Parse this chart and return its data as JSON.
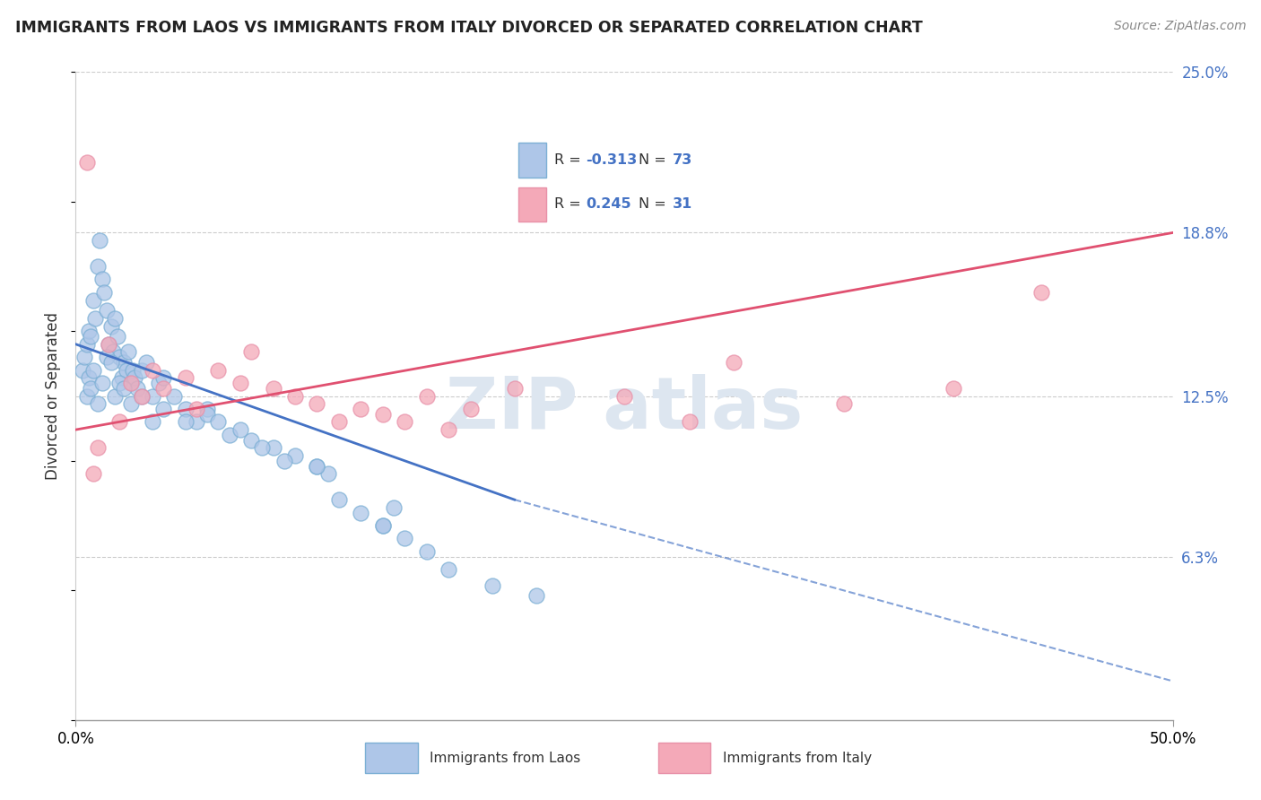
{
  "title": "IMMIGRANTS FROM LAOS VS IMMIGRANTS FROM ITALY DIVORCED OR SEPARATED CORRELATION CHART",
  "source": "Source: ZipAtlas.com",
  "ylabel": "Divorced or Separated",
  "x_min": 0.0,
  "x_max": 50.0,
  "y_min": 0.0,
  "y_max": 25.0,
  "y_ticks_right": [
    6.3,
    12.5,
    18.8,
    25.0
  ],
  "y_tick_labels_right": [
    "6.3%",
    "12.5%",
    "18.8%",
    "25.0%"
  ],
  "grid_color": "#cccccc",
  "background_color": "#ffffff",
  "laos_R": -0.313,
  "laos_N": 73,
  "italy_R": 0.245,
  "italy_N": 31,
  "laos_x": [
    0.3,
    0.4,
    0.5,
    0.6,
    0.7,
    0.8,
    0.9,
    1.0,
    1.1,
    1.2,
    1.3,
    1.4,
    1.5,
    1.6,
    1.7,
    1.8,
    1.9,
    2.0,
    2.1,
    2.2,
    2.3,
    2.4,
    2.5,
    2.6,
    2.7,
    2.8,
    3.0,
    3.2,
    3.5,
    3.8,
    4.0,
    4.5,
    5.0,
    5.5,
    6.0,
    7.0,
    8.0,
    9.0,
    10.0,
    11.0,
    12.0,
    13.0,
    14.0,
    15.0,
    16.0,
    0.5,
    0.6,
    0.7,
    0.8,
    1.0,
    1.2,
    1.4,
    1.6,
    1.8,
    2.0,
    2.2,
    2.5,
    3.0,
    3.5,
    4.0,
    5.0,
    6.0,
    7.5,
    9.5,
    11.5,
    14.0,
    17.0,
    19.0,
    21.0,
    6.5,
    8.5,
    11.0,
    14.5
  ],
  "laos_y": [
    13.5,
    14.0,
    14.5,
    15.0,
    14.8,
    16.2,
    15.5,
    17.5,
    18.5,
    17.0,
    16.5,
    15.8,
    14.5,
    15.2,
    14.2,
    15.5,
    14.8,
    14.0,
    13.2,
    13.8,
    13.5,
    14.2,
    13.0,
    13.5,
    13.2,
    12.8,
    13.5,
    13.8,
    12.5,
    13.0,
    13.2,
    12.5,
    12.0,
    11.5,
    12.0,
    11.0,
    10.8,
    10.5,
    10.2,
    9.8,
    8.5,
    8.0,
    7.5,
    7.0,
    6.5,
    12.5,
    13.2,
    12.8,
    13.5,
    12.2,
    13.0,
    14.0,
    13.8,
    12.5,
    13.0,
    12.8,
    12.2,
    12.5,
    11.5,
    12.0,
    11.5,
    11.8,
    11.2,
    10.0,
    9.5,
    7.5,
    5.8,
    5.2,
    4.8,
    11.5,
    10.5,
    9.8,
    8.2
  ],
  "italy_x": [
    0.5,
    1.0,
    1.5,
    2.0,
    2.5,
    3.0,
    3.5,
    4.0,
    5.0,
    5.5,
    6.5,
    7.5,
    8.0,
    9.0,
    10.0,
    11.0,
    12.0,
    13.0,
    14.0,
    15.0,
    16.0,
    17.0,
    18.0,
    20.0,
    25.0,
    28.0,
    30.0,
    35.0,
    40.0,
    44.0,
    0.8
  ],
  "italy_y": [
    21.5,
    10.5,
    14.5,
    11.5,
    13.0,
    12.5,
    13.5,
    12.8,
    13.2,
    12.0,
    13.5,
    13.0,
    14.2,
    12.8,
    12.5,
    12.2,
    11.5,
    12.0,
    11.8,
    11.5,
    12.5,
    11.2,
    12.0,
    12.8,
    12.5,
    11.5,
    13.8,
    12.2,
    12.8,
    16.5,
    9.5
  ],
  "blue_line_color": "#4472c4",
  "pink_line_color": "#e05070",
  "blue_dot_color": "#aec6e8",
  "pink_dot_color": "#f4a9b8",
  "blue_dot_edge": "#7bafd4",
  "pink_dot_edge": "#e890a8",
  "watermark_color": "#dde6f0",
  "legend_color_R": "#4472c4",
  "legend_color_N": "#4472c4",
  "laos_line_start_x": 0.0,
  "laos_line_start_y": 14.5,
  "laos_line_end_x": 20.0,
  "laos_line_end_y": 8.5,
  "laos_dash_end_x": 50.0,
  "laos_dash_end_y": 1.5,
  "italy_line_start_x": 0.0,
  "italy_line_start_y": 11.2,
  "italy_line_end_x": 50.0,
  "italy_line_end_y": 18.8
}
